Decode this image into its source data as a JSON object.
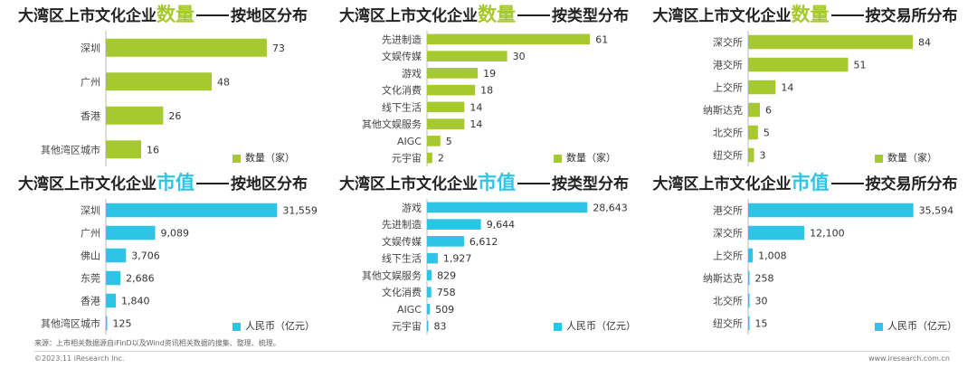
{
  "chart_data": [
    {
      "type": "bar",
      "title": "大湾区上市文化企业数量——按地区分布",
      "title_parts": {
        "prefix": "大湾区上市文化企业",
        "highlight": "数量",
        "suffix": "按地区分布"
      },
      "categories": [
        "深圳",
        "广州",
        "香港",
        "其他湾区城市"
      ],
      "values": [
        73,
        48,
        26,
        16
      ],
      "value_labels": [
        "73",
        "48",
        "26",
        "16"
      ],
      "series": [
        {
          "name": "数量（家）",
          "values": [
            73,
            48,
            26,
            16
          ]
        }
      ],
      "color": "#a5c92f",
      "orientation": "horizontal",
      "xlim": [
        0,
        80
      ],
      "legend": "bottom-right",
      "grid": false
    },
    {
      "type": "bar",
      "title": "大湾区上市文化企业数量——按类型分布",
      "title_parts": {
        "prefix": "大湾区上市文化企业",
        "highlight": "数量",
        "suffix": "按类型分布"
      },
      "categories": [
        "先进制造",
        "文娱传媒",
        "游戏",
        "文化消费",
        "线下生活",
        "其他文娱服务",
        "AIGC",
        "元宇宙"
      ],
      "values": [
        61,
        30,
        19,
        18,
        14,
        14,
        5,
        2
      ],
      "value_labels": [
        "61",
        "30",
        "19",
        "18",
        "14",
        "14",
        "5",
        "2"
      ],
      "series": [
        {
          "name": "数量（家）",
          "values": [
            61,
            30,
            19,
            18,
            14,
            14,
            5,
            2
          ]
        }
      ],
      "color": "#a5c92f",
      "orientation": "horizontal",
      "xlim": [
        0,
        66
      ],
      "legend": "bottom-right",
      "grid": false
    },
    {
      "type": "bar",
      "title": "大湾区上市文化企业数量——按交易所分布",
      "title_parts": {
        "prefix": "大湾区上市文化企业",
        "highlight": "数量",
        "suffix": "按交易所分布"
      },
      "categories": [
        "深交所",
        "港交所",
        "上交所",
        "纳斯达克",
        "北交所",
        "纽交所"
      ],
      "values": [
        84,
        51,
        14,
        6,
        5,
        3
      ],
      "value_labels": [
        "84",
        "51",
        "14",
        "6",
        "5",
        "3"
      ],
      "series": [
        {
          "name": "数量（家）",
          "values": [
            84,
            51,
            14,
            6,
            5,
            3
          ]
        }
      ],
      "color": "#a5c92f",
      "orientation": "horizontal",
      "xlim": [
        0,
        90
      ],
      "legend": "bottom-right",
      "grid": false
    },
    {
      "type": "bar",
      "title": "大湾区上市文化企业市值——按地区分布",
      "title_parts": {
        "prefix": "大湾区上市文化企业",
        "highlight": "市值",
        "suffix": "按地区分布"
      },
      "categories": [
        "深圳",
        "广州",
        "佛山",
        "东莞",
        "香港",
        "其他湾区城市"
      ],
      "values": [
        31559,
        9089,
        3706,
        2686,
        1840,
        125
      ],
      "value_labels": [
        "31,559",
        "9,089",
        "3,706",
        "2,686",
        "1,840",
        "125"
      ],
      "series": [
        {
          "name": "人民币（亿元）",
          "values": [
            31559,
            9089,
            3706,
            2686,
            1840,
            125
          ]
        }
      ],
      "color": "#2ec4e6",
      "orientation": "horizontal",
      "xlim": [
        0,
        32500
      ],
      "legend": "bottom-right",
      "grid": false
    },
    {
      "type": "bar",
      "title": "大湾区上市文化企业市值——按类型分布",
      "title_parts": {
        "prefix": "大湾区上市文化企业",
        "highlight": "市值",
        "suffix": "按类型分布"
      },
      "categories": [
        "游戏",
        "先进制造",
        "文娱传媒",
        "线下生活",
        "其他文娱服务",
        "文化消费",
        "AIGC",
        "元宇宙"
      ],
      "values": [
        28643,
        9644,
        6612,
        1927,
        829,
        758,
        509,
        83
      ],
      "value_labels": [
        "28,643",
        "9,644",
        "6,612",
        "1,927",
        "829",
        "758",
        "509",
        "83"
      ],
      "series": [
        {
          "name": "人民币（亿元）",
          "values": [
            28643,
            9644,
            6612,
            1927,
            829,
            758,
            509,
            83
          ]
        }
      ],
      "color": "#2ec4e6",
      "orientation": "horizontal",
      "xlim": [
        0,
        31500
      ],
      "legend": "bottom-right",
      "grid": false
    },
    {
      "type": "bar",
      "title": "大湾区上市文化企业市值——按交易所分布",
      "title_parts": {
        "prefix": "大湾区上市文化企业",
        "highlight": "市值",
        "suffix": "按交易所分布"
      },
      "categories": [
        "港交所",
        "深交所",
        "上交所",
        "纳斯达克",
        "北交所",
        "纽交所"
      ],
      "values": [
        35594,
        12100,
        1008,
        258,
        30,
        15
      ],
      "value_labels": [
        "35,594",
        "12,100",
        "1,008",
        "258",
        "30",
        "15"
      ],
      "series": [
        {
          "name": "人民币（亿元）",
          "values": [
            35594,
            12100,
            1008,
            258,
            30,
            15
          ]
        }
      ],
      "color": "#2ec4e6",
      "orientation": "horizontal",
      "xlim": [
        0,
        38000
      ],
      "legend": "bottom-right",
      "grid": false
    }
  ],
  "colors": {
    "green_accent": "#a5c92f",
    "blue_accent": "#2ec4e6"
  },
  "footer": {
    "source": "来源：上市相关数据源自iFinD以及Wind资讯相关数据的搜集、整理、梳理。",
    "copyright": "©2023.11 iResearch Inc.",
    "website": "www.iresearch.com.cn"
  }
}
